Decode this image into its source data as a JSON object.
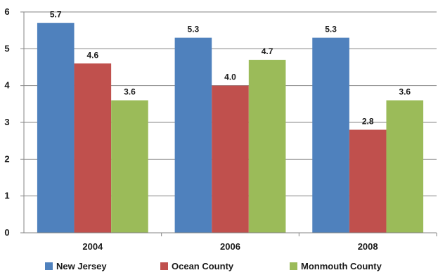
{
  "chart_data": {
    "type": "bar",
    "categories": [
      "2004",
      "2006",
      "2008"
    ],
    "series": [
      {
        "name": "New Jersey",
        "values": [
          5.7,
          5.3,
          5.3
        ],
        "color": "#4f81bd",
        "labels": [
          "5.7",
          "5.3",
          "5.3"
        ]
      },
      {
        "name": "Ocean County",
        "values": [
          4.6,
          4.0,
          2.8
        ],
        "color": "#c0504d",
        "labels": [
          "4.6",
          "4.0",
          "2.8"
        ]
      },
      {
        "name": "Monmouth County",
        "values": [
          3.6,
          4.7,
          3.6
        ],
        "color": "#9bbb59",
        "labels": [
          "3.6",
          "4.7",
          "3.6"
        ]
      }
    ],
    "ylim": [
      0,
      6
    ],
    "yticks": [
      "0",
      "1",
      "2",
      "3",
      "4",
      "5",
      "6"
    ],
    "grid": true,
    "legend_position": "bottom",
    "title": "",
    "xlabel": "",
    "ylabel": ""
  }
}
